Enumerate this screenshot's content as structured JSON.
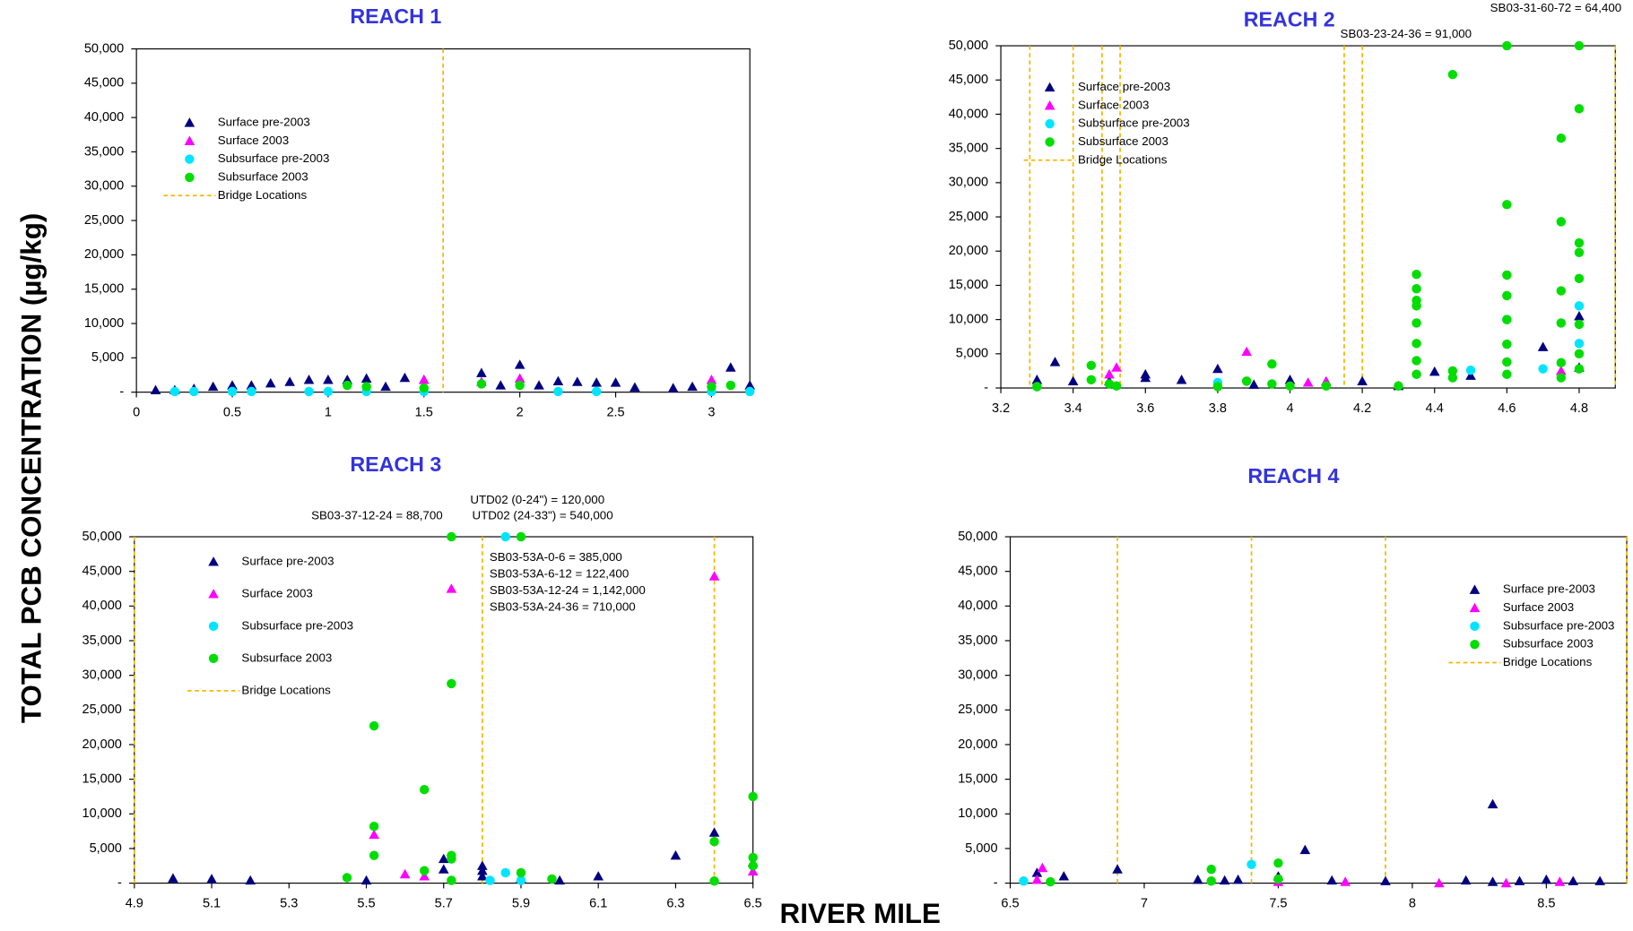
{
  "ylabel": "TOTAL PCB CONCENTRATION (µg/kg)",
  "xlabel": "RIVER MILE",
  "chart_data": [
    {
      "type": "scatter",
      "title": "REACH 1",
      "legend": "upper left",
      "bridge_label": "Bridge Locations",
      "bridge_color": "#f5b800",
      "xlim": [
        0,
        3.2
      ],
      "ylim": [
        0,
        50000
      ],
      "xticks": [
        0,
        0.5,
        1,
        1.5,
        2,
        2.5,
        3
      ],
      "yticks": [
        {
          "value": 0,
          "label": "-"
        },
        {
          "value": 5000,
          "label": "5,000"
        },
        {
          "value": 10000,
          "label": "10,000"
        },
        {
          "value": 15000,
          "label": "15,000"
        },
        {
          "value": 20000,
          "label": "20,000"
        },
        {
          "value": 25000,
          "label": "25,000"
        },
        {
          "value": 30000,
          "label": "30,000"
        },
        {
          "value": 35000,
          "label": "35,000"
        },
        {
          "value": 40000,
          "label": "40,000"
        },
        {
          "value": 45000,
          "label": "45,000"
        },
        {
          "value": 50000,
          "label": "50,000"
        }
      ],
      "bridges": [
        1.6
      ],
      "annotations": [],
      "series": [
        {
          "name": "Surface pre-2003",
          "color": "#000080",
          "marker": "triangle",
          "x": [
            0.1,
            0.2,
            0.3,
            0.4,
            0.5,
            0.6,
            0.7,
            0.8,
            0.9,
            1.0,
            1.1,
            1.2,
            1.3,
            1.4,
            1.5,
            1.8,
            1.9,
            2.0,
            2.1,
            2.2,
            2.3,
            2.4,
            2.5,
            2.6,
            2.8,
            2.9,
            3.1,
            3.2
          ],
          "values": [
            300,
            300,
            500,
            800,
            1000,
            1000,
            1300,
            1500,
            1800,
            1800,
            1800,
            2000,
            800,
            2100,
            1800,
            2800,
            1000,
            4000,
            1000,
            1600,
            1500,
            1400,
            1400,
            700,
            600,
            800,
            3600,
            1000
          ]
        },
        {
          "name": "Surface 2003",
          "color": "#ff00ff",
          "marker": "triangle",
          "x": [
            1.5,
            1.8,
            2.0,
            3.0
          ],
          "values": [
            1800,
            1500,
            2000,
            1800
          ]
        },
        {
          "name": "Subsurface pre-2003",
          "color": "#00e5ff",
          "marker": "circle",
          "x": [
            0.2,
            0.3,
            0.5,
            0.6,
            0.9,
            1.0,
            1.2,
            1.5,
            2.2,
            2.4,
            3.0,
            3.2
          ],
          "values": [
            100,
            100,
            100,
            100,
            100,
            100,
            100,
            100,
            100,
            100,
            100,
            100
          ]
        },
        {
          "name": "Subsurface 2003",
          "color": "#00dd00",
          "marker": "circle",
          "x": [
            1.1,
            1.2,
            1.5,
            1.8,
            2.0,
            3.0,
            3.1
          ],
          "values": [
            1000,
            800,
            600,
            1200,
            1000,
            800,
            1000
          ]
        }
      ]
    },
    {
      "type": "scatter",
      "title": "REACH 2",
      "legend": "upper left",
      "bridge_label": "Bridge Locations",
      "bridge_color": "#f5b800",
      "xlim": [
        3.2,
        4.9
      ],
      "ylim": [
        0,
        50000
      ],
      "xticks": [
        3.2,
        3.4,
        3.6,
        3.8,
        4,
        4.2,
        4.4,
        4.6,
        4.8
      ],
      "yticks": [
        {
          "value": 0,
          "label": "-"
        },
        {
          "value": 5000,
          "label": "5,000"
        },
        {
          "value": 10000,
          "label": "10,000"
        },
        {
          "value": 15000,
          "label": "15,000"
        },
        {
          "value": 20000,
          "label": "20,000"
        },
        {
          "value": 25000,
          "label": "25,000"
        },
        {
          "value": 30000,
          "label": "30,000"
        },
        {
          "value": 35000,
          "label": "35,000"
        },
        {
          "value": 40000,
          "label": "40,000"
        },
        {
          "value": 45000,
          "label": "45,000"
        },
        {
          "value": 50000,
          "label": "50,000"
        }
      ],
      "bridges": [
        3.28,
        3.4,
        3.48,
        3.53,
        4.15,
        4.2,
        4.9
      ],
      "annotations": [
        "SB03-31-60-72 = 64,400",
        "SB03-23-24-36 = 91,000"
      ],
      "series": [
        {
          "name": "Surface pre-2003",
          "color": "#000080",
          "marker": "triangle",
          "x": [
            3.3,
            3.35,
            3.4,
            3.5,
            3.6,
            3.6,
            3.7,
            3.8,
            3.9,
            4.0,
            4.2,
            4.3,
            4.4,
            4.5,
            4.7,
            4.8,
            4.8
          ],
          "values": [
            1200,
            3800,
            1000,
            1000,
            2000,
            1500,
            1200,
            2800,
            500,
            1200,
            1000,
            300,
            2400,
            1800,
            6000,
            10500,
            3000
          ]
        },
        {
          "name": "Surface 2003",
          "color": "#ff00ff",
          "marker": "triangle",
          "x": [
            3.5,
            3.52,
            3.88,
            4.05,
            4.1,
            4.75
          ],
          "values": [
            2000,
            3000,
            5300,
            800,
            1000,
            2500
          ]
        },
        {
          "name": "Subsurface pre-2003",
          "color": "#00e5ff",
          "marker": "circle",
          "x": [
            3.3,
            3.8,
            4.5,
            4.6,
            4.7,
            4.8,
            4.8
          ],
          "values": [
            200,
            800,
            2600,
            10000,
            2800,
            12000,
            6500
          ]
        },
        {
          "name": "Subsurface 2003",
          "color": "#00dd00",
          "marker": "circle",
          "x": [
            3.3,
            3.45,
            3.45,
            3.5,
            3.52,
            3.8,
            3.88,
            3.95,
            3.95,
            4.0,
            4.1,
            4.3,
            4.35,
            4.35,
            4.35,
            4.35,
            4.35,
            4.35,
            4.35,
            4.35,
            4.45,
            4.45,
            4.45,
            4.6,
            4.6,
            4.6,
            4.6,
            4.6,
            4.6,
            4.6,
            4.6,
            4.75,
            4.75,
            4.75,
            4.75,
            4.75,
            4.75,
            4.8,
            4.8,
            4.8,
            4.8,
            4.8,
            4.8,
            4.8,
            4.8
          ],
          "values": [
            200,
            3300,
            1200,
            600,
            300,
            200,
            1000,
            3500,
            600,
            300,
            300,
            300,
            16600,
            14500,
            12800,
            12000,
            9500,
            6500,
            4000,
            2000,
            45800,
            2500,
            1500,
            50000,
            26800,
            16500,
            13500,
            10000,
            6400,
            3800,
            2000,
            36500,
            24300,
            14200,
            9500,
            3700,
            1500,
            50000,
            40800,
            21200,
            19800,
            16000,
            9300,
            5000,
            2800
          ]
        }
      ]
    },
    {
      "type": "scatter",
      "title": "REACH 3",
      "legend": "upper left",
      "bridge_label": "Bridge Locations",
      "bridge_color": "#f5b800",
      "xlim": [
        4.9,
        6.5
      ],
      "ylim": [
        0,
        50000
      ],
      "xticks": [
        4.9,
        5.1,
        5.3,
        5.5,
        5.7,
        5.9,
        6.1,
        6.3,
        6.5
      ],
      "yticks": [
        {
          "value": 0,
          "label": "-"
        },
        {
          "value": 5000,
          "label": "5,000"
        },
        {
          "value": 10000,
          "label": "10,000"
        },
        {
          "value": 15000,
          "label": "15,000"
        },
        {
          "value": 20000,
          "label": "20,000"
        },
        {
          "value": 25000,
          "label": "25,000"
        },
        {
          "value": 30000,
          "label": "30,000"
        },
        {
          "value": 35000,
          "label": "35,000"
        },
        {
          "value": 40000,
          "label": "40,000"
        },
        {
          "value": 45000,
          "label": "45,000"
        },
        {
          "value": 50000,
          "label": "50,000"
        }
      ],
      "bridges": [
        4.9,
        5.8,
        6.4
      ],
      "annotations": [
        "SB03-37-12-24 = 88,700",
        "UTD02 (0-24\") = 120,000",
        "UTD02 (24-33\") = 540,000",
        "SB03-53A-0-6 = 385,000",
        "SB03-53A-6-12 = 122,400",
        "SB03-53A-12-24 = 1,142,000",
        "SB03-53A-24-36 = 710,000"
      ],
      "series": [
        {
          "name": "Surface pre-2003",
          "color": "#000080",
          "marker": "triangle",
          "x": [
            5.0,
            5.1,
            5.2,
            5.5,
            5.7,
            5.7,
            5.8,
            5.8,
            5.8,
            5.9,
            6.0,
            6.1,
            6.3,
            6.4,
            6.5
          ],
          "values": [
            700,
            600,
            400,
            400,
            3500,
            2000,
            2500,
            1800,
            1000,
            700,
            400,
            1000,
            4000,
            7300,
            3000
          ]
        },
        {
          "name": "Surface 2003",
          "color": "#ff00ff",
          "marker": "triangle",
          "x": [
            5.52,
            5.6,
            5.65,
            5.72,
            6.4,
            6.5
          ],
          "values": [
            7000,
            1300,
            1000,
            42500,
            44300,
            1700
          ]
        },
        {
          "name": "Subsurface pre-2003",
          "color": "#00e5ff",
          "marker": "circle",
          "x": [
            5.82,
            5.86,
            5.86,
            5.9
          ],
          "values": [
            400,
            50000,
            1500,
            400
          ]
        },
        {
          "name": "Subsurface 2003",
          "color": "#00dd00",
          "marker": "circle",
          "x": [
            5.45,
            5.52,
            5.52,
            5.52,
            5.65,
            5.65,
            5.72,
            5.72,
            5.72,
            5.72,
            5.72,
            5.9,
            5.9,
            5.98,
            6.4,
            6.4,
            6.5,
            6.5,
            6.5
          ],
          "values": [
            800,
            22700,
            8200,
            4000,
            13500,
            1800,
            50000,
            28800,
            4000,
            3500,
            400,
            50000,
            1500,
            600,
            6000,
            300,
            12500,
            3700,
            2500
          ]
        }
      ]
    },
    {
      "type": "scatter",
      "title": "REACH 4",
      "legend": "upper right",
      "bridge_label": "Bridge Locations",
      "bridge_color": "#f5b800",
      "xlim": [
        6.5,
        8.8
      ],
      "ylim": [
        0,
        50000
      ],
      "xticks": [
        6.5,
        7,
        7.5,
        8,
        8.5
      ],
      "yticks": [
        {
          "value": 0,
          "label": "-"
        },
        {
          "value": 5000,
          "label": "5,000"
        },
        {
          "value": 10000,
          "label": "10,000"
        },
        {
          "value": 15000,
          "label": "15,000"
        },
        {
          "value": 20000,
          "label": "20,000"
        },
        {
          "value": 25000,
          "label": "25,000"
        },
        {
          "value": 30000,
          "label": "30,000"
        },
        {
          "value": 35000,
          "label": "35,000"
        },
        {
          "value": 40000,
          "label": "40,000"
        },
        {
          "value": 45000,
          "label": "45,000"
        },
        {
          "value": 50000,
          "label": "50,000"
        }
      ],
      "bridges": [
        6.9,
        7.4,
        7.9,
        8.8
      ],
      "annotations": [],
      "series": [
        {
          "name": "Surface pre-2003",
          "color": "#000080",
          "marker": "triangle",
          "x": [
            6.6,
            6.7,
            6.9,
            7.2,
            7.3,
            7.35,
            7.5,
            7.6,
            7.7,
            7.9,
            8.2,
            8.3,
            8.3,
            8.4,
            8.5,
            8.6,
            8.7
          ],
          "values": [
            1500,
            1000,
            2000,
            500,
            400,
            500,
            1000,
            4800,
            400,
            300,
            400,
            11400,
            200,
            300,
            500,
            300,
            300
          ]
        },
        {
          "name": "Surface 2003",
          "color": "#ff00ff",
          "marker": "triangle",
          "x": [
            6.6,
            6.62,
            7.5,
            7.75,
            8.1,
            8.35,
            8.55
          ],
          "values": [
            500,
            2200,
            200,
            200,
            0,
            0,
            200
          ]
        },
        {
          "name": "Subsurface pre-2003",
          "color": "#00e5ff",
          "marker": "circle",
          "x": [
            6.55,
            7.4
          ],
          "values": [
            300,
            2700
          ]
        },
        {
          "name": "Subsurface 2003",
          "color": "#00dd00",
          "marker": "circle",
          "x": [
            6.65,
            7.25,
            7.25,
            7.5,
            7.5
          ],
          "values": [
            200,
            2000,
            300,
            2900,
            600
          ]
        }
      ]
    }
  ]
}
